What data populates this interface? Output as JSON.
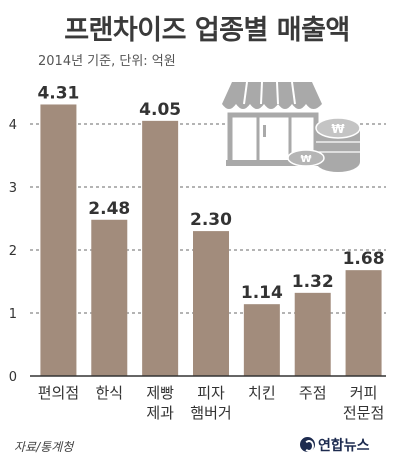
{
  "header": {
    "title": "프랜차이즈 업종별 매출액",
    "subtitle": "2014년 기준, 단위: 억원"
  },
  "footer": {
    "source": "자료/통계청",
    "credit": "연합뉴스"
  },
  "chart_data": {
    "type": "bar",
    "title": "프랜차이즈 업종별 매출액",
    "subtitle": "2014년 기준, 단위: 억원",
    "categories": [
      [
        "편의점"
      ],
      [
        "한식"
      ],
      [
        "제빵",
        "제과"
      ],
      [
        "피자",
        "햄버거"
      ],
      [
        "치킨"
      ],
      [
        "주점"
      ],
      [
        "커피",
        "전문점"
      ]
    ],
    "values": [
      4.31,
      2.48,
      4.05,
      2.3,
      1.14,
      1.32,
      1.68
    ],
    "value_labels": [
      "4.31",
      "2.48",
      "4.05",
      "2.30",
      "1.14",
      "1.32",
      "1.68"
    ],
    "y_ticks": [
      0,
      1,
      2,
      3,
      4
    ],
    "ylim": [
      0,
      4.5
    ],
    "grid": true,
    "bar_color": "#a28c7c",
    "icon": "storefront-with-coins-icon"
  }
}
